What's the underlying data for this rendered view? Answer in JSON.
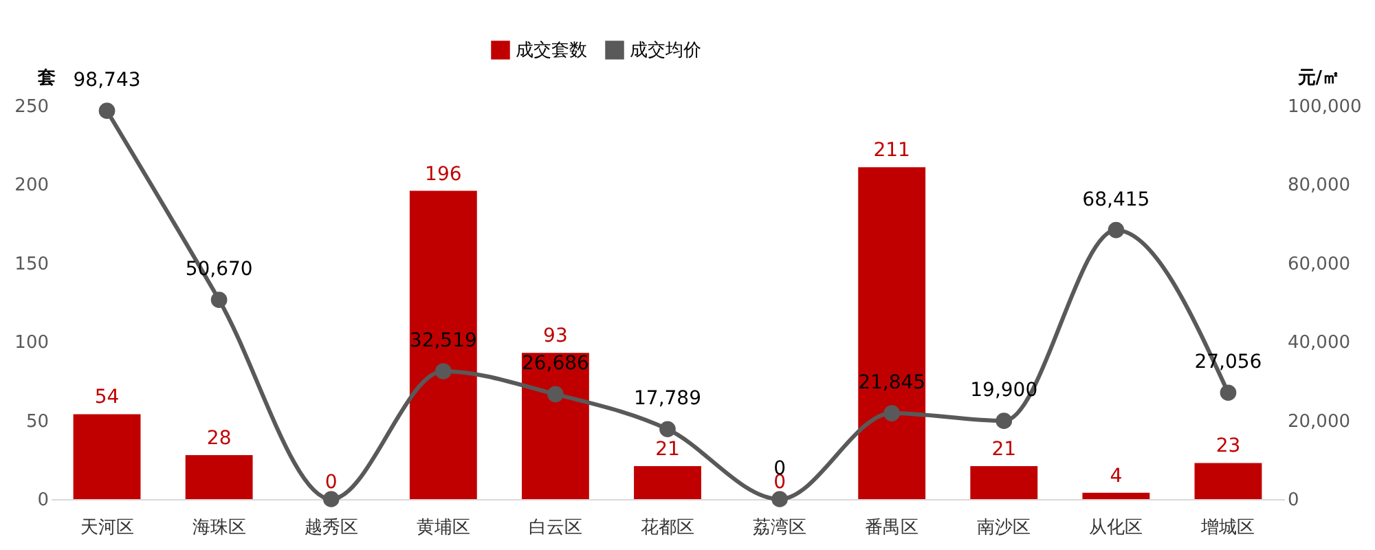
{
  "chart_data": {
    "type": "bar",
    "categories": [
      "天河区",
      "海珠区",
      "越秀区",
      "黄埔区",
      "白云区",
      "花都区",
      "荔湾区",
      "番禺区",
      "南沙区",
      "从化区",
      "增城区"
    ],
    "ylabel": "套",
    "y2label": "元/㎡",
    "ylim": [
      0,
      250
    ],
    "yticks": [
      0,
      50,
      100,
      150,
      200,
      250
    ],
    "y2lim": [
      0,
      100000
    ],
    "y2ticks": [
      0,
      {
        "value": 20000,
        "label": "20,000"
      },
      {
        "value": 40000,
        "label": "40,000"
      },
      {
        "value": 60000,
        "label": "60,000"
      },
      {
        "value": 80000,
        "label": "80,000"
      },
      {
        "value": 100000,
        "label": "100,000"
      }
    ],
    "legend": "top",
    "grid": false,
    "marker": "circle",
    "series": [
      {
        "name": "成交套数",
        "color": "#c00000",
        "values": [
          54,
          28,
          0,
          196,
          93,
          21,
          0,
          211,
          21,
          4,
          23
        ],
        "value_labels": [
          "54",
          "28",
          "0",
          "196",
          "93",
          "21",
          "0",
          "211",
          "21",
          "4",
          "23"
        ]
      },
      {
        "name": "成交均价",
        "type": "line",
        "axis": "y2",
        "color": "#595959",
        "values": [
          98743,
          50670,
          0,
          32519,
          26686,
          17789,
          0,
          21845,
          19900,
          68415,
          27056
        ],
        "value_labels": [
          "98,743",
          "50,670",
          null,
          "32,519",
          "26,686",
          "17,789",
          "0",
          "21,845",
          "19,900",
          "68,415",
          "27,056"
        ]
      }
    ]
  }
}
